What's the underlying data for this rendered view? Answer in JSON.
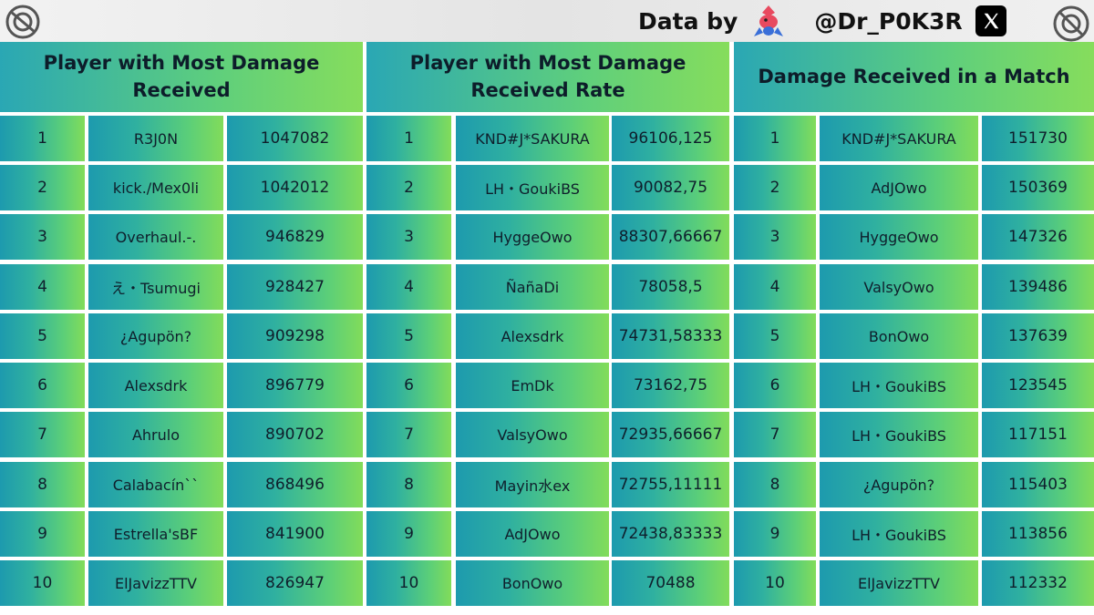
{
  "credit": {
    "data_by": "Data by",
    "handle": "@Dr_P0K3R",
    "mascot_icon": "porygon-mascot-icon",
    "social_icon": "x-logo-icon",
    "logo_icon": "disc-logo-icon"
  },
  "colors": {
    "gradient_start": "#1d9aae",
    "gradient_end": "#82dc5a",
    "header_text": "#0d1d2a"
  },
  "tables": [
    {
      "title": "Player with Most Damage Received",
      "rows": [
        {
          "rank": "1",
          "name": "R3J0N",
          "value": "1047082"
        },
        {
          "rank": "2",
          "name": "kick./Mex0li",
          "value": "1042012"
        },
        {
          "rank": "3",
          "name": "Overhaul.-.",
          "value": "946829"
        },
        {
          "rank": "4",
          "name": "え・Tsumugi",
          "value": "928427"
        },
        {
          "rank": "5",
          "name": "¿Agupön?",
          "value": "909298"
        },
        {
          "rank": "6",
          "name": "Alexsdrk",
          "value": "896779"
        },
        {
          "rank": "7",
          "name": "Ahrulo",
          "value": "890702"
        },
        {
          "rank": "8",
          "name": "Calabacín``",
          "value": "868496"
        },
        {
          "rank": "9",
          "name": "Estrella'sBF",
          "value": "841900"
        },
        {
          "rank": "10",
          "name": "ElJavizzTTV",
          "value": "826947"
        }
      ]
    },
    {
      "title": "Player with Most Damage Received Rate",
      "rows": [
        {
          "rank": "1",
          "name": "KND#J*SAKURA",
          "value": "96106,125"
        },
        {
          "rank": "2",
          "name": "LH・GoukiBS",
          "value": "90082,75"
        },
        {
          "rank": "3",
          "name": "HyggeOwo",
          "value": "88307,66667"
        },
        {
          "rank": "4",
          "name": "ÑañaDi",
          "value": "78058,5"
        },
        {
          "rank": "5",
          "name": "Alexsdrk",
          "value": "74731,58333"
        },
        {
          "rank": "6",
          "name": "EmDk",
          "value": "73162,75"
        },
        {
          "rank": "7",
          "name": "ValsyOwo",
          "value": "72935,66667"
        },
        {
          "rank": "8",
          "name": "Mayin水ex",
          "value": "72755,11111"
        },
        {
          "rank": "9",
          "name": "AdJOwo",
          "value": "72438,83333"
        },
        {
          "rank": "10",
          "name": "BonOwo",
          "value": "70488"
        }
      ]
    },
    {
      "title": "Damage Received in a Match",
      "rows": [
        {
          "rank": "1",
          "name": "KND#J*SAKURA",
          "value": "151730"
        },
        {
          "rank": "2",
          "name": "AdJOwo",
          "value": "150369"
        },
        {
          "rank": "3",
          "name": "HyggeOwo",
          "value": "147326"
        },
        {
          "rank": "4",
          "name": "ValsyOwo",
          "value": "139486"
        },
        {
          "rank": "5",
          "name": "BonOwo",
          "value": "137639"
        },
        {
          "rank": "6",
          "name": "LH・GoukiBS",
          "value": "123545"
        },
        {
          "rank": "7",
          "name": "LH・GoukiBS",
          "value": "117151"
        },
        {
          "rank": "8",
          "name": "¿Agupön?",
          "value": "115403"
        },
        {
          "rank": "9",
          "name": "LH・GoukiBS",
          "value": "113856"
        },
        {
          "rank": "10",
          "name": "ElJavizzTTV",
          "value": "112332"
        }
      ]
    }
  ]
}
